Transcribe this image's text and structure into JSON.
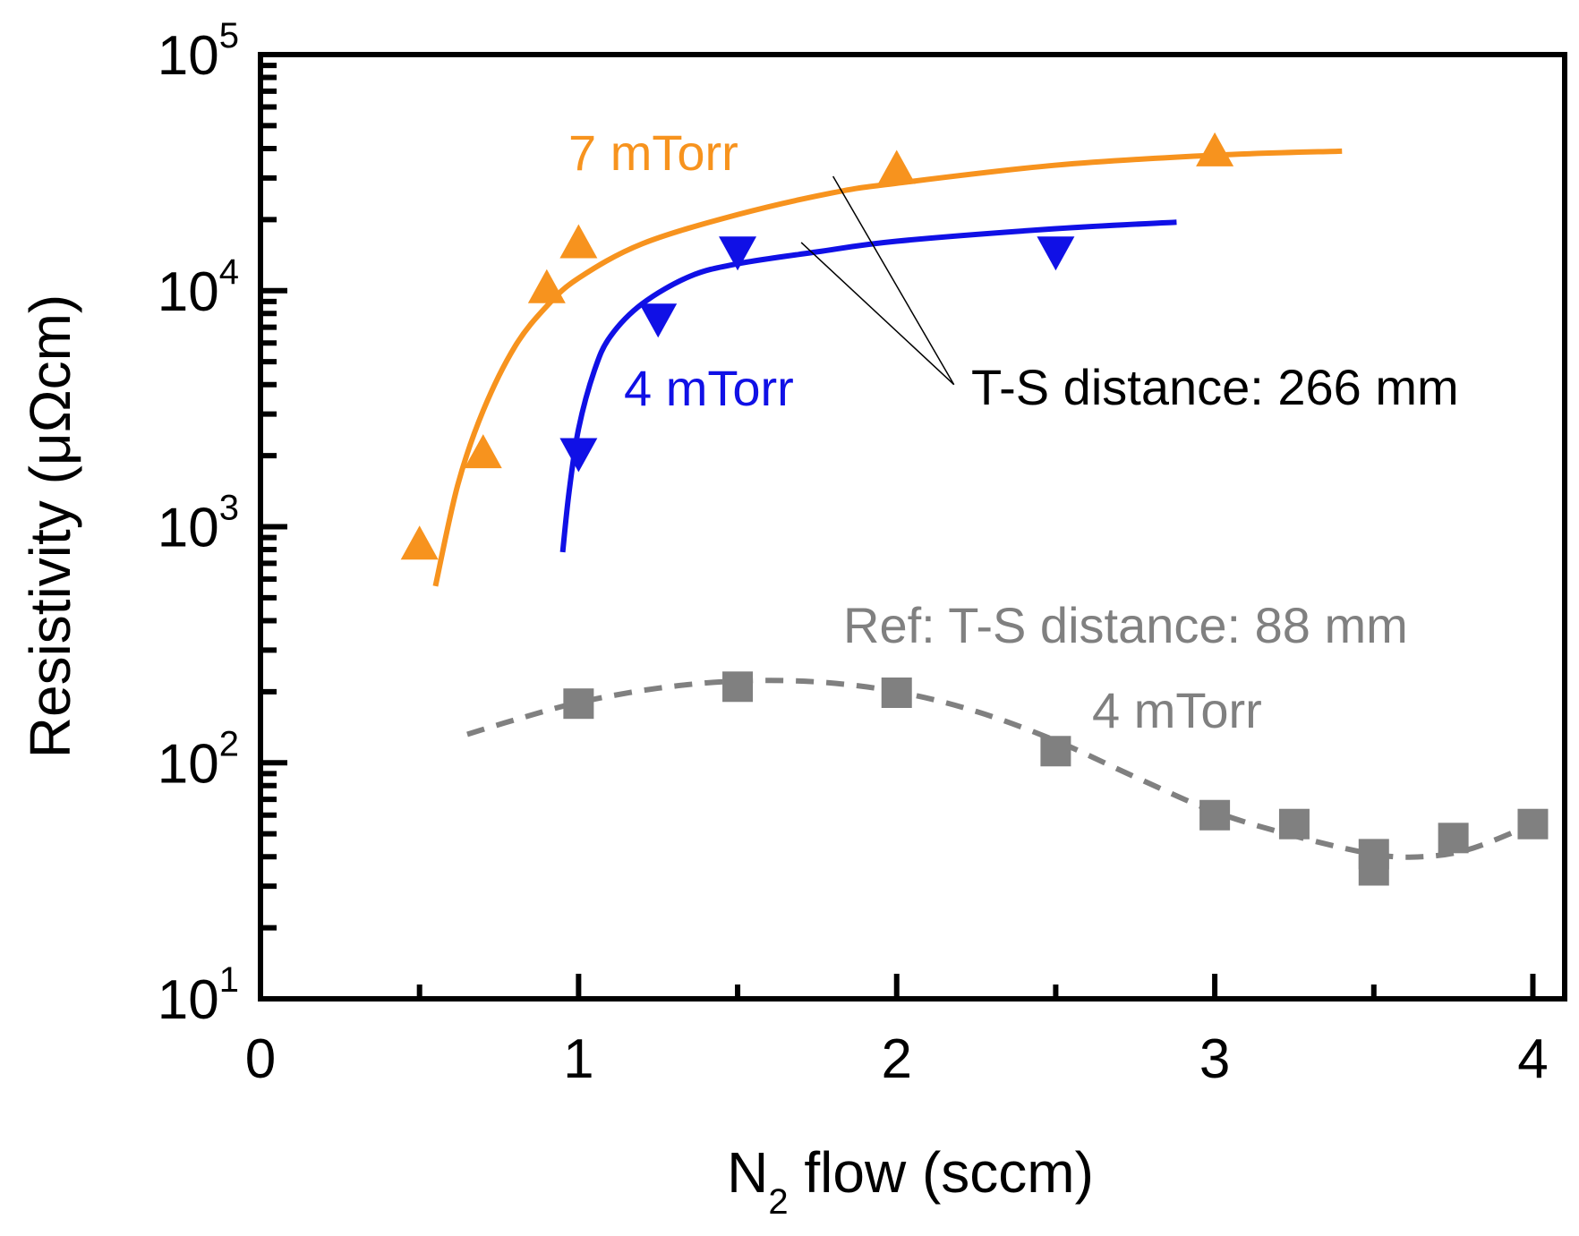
{
  "chart_data": {
    "type": "scatter",
    "title": "",
    "xlabel": {
      "main": "N",
      "sub": "2",
      "rest": " flow (sccm)"
    },
    "ylabel": "Resistivity (μΩcm)",
    "xlim": [
      0,
      4.1
    ],
    "ylim_log10": [
      1,
      5
    ],
    "y_scale": "log",
    "x_ticks": [
      {
        "value": 0,
        "label": "0"
      },
      {
        "value": 1,
        "label": "1"
      },
      {
        "value": 2,
        "label": "2"
      },
      {
        "value": 3,
        "label": "3"
      },
      {
        "value": 4,
        "label": "4"
      }
    ],
    "y_ticks": [
      {
        "exp": 1,
        "base": "10",
        "sup": "1"
      },
      {
        "exp": 2,
        "base": "10",
        "sup": "2"
      },
      {
        "exp": 3,
        "base": "10",
        "sup": "3"
      },
      {
        "exp": 4,
        "base": "10",
        "sup": "4"
      },
      {
        "exp": 5,
        "base": "10",
        "sup": "5"
      }
    ],
    "series": [
      {
        "name": "7 mTorr",
        "color": "#f7931e",
        "marker": "triangle-up",
        "points": [
          [
            0.5,
            820
          ],
          [
            0.7,
            2000
          ],
          [
            0.9,
            10000
          ],
          [
            1.0,
            15500
          ],
          [
            2.0,
            32000
          ],
          [
            3.0,
            38000
          ]
        ],
        "fit": [
          [
            0.55,
            560
          ],
          [
            0.62,
            1500
          ],
          [
            0.7,
            3100
          ],
          [
            0.8,
            5800
          ],
          [
            0.9,
            8600
          ],
          [
            1.0,
            11300
          ],
          [
            1.2,
            15800
          ],
          [
            1.5,
            21000
          ],
          [
            1.8,
            26000
          ],
          [
            2.0,
            28500
          ],
          [
            2.5,
            34000
          ],
          [
            3.0,
            37500
          ],
          [
            3.4,
            39000
          ]
        ],
        "fit_style": "solid",
        "label": "7 mTorr"
      },
      {
        "name": "4 mTorr",
        "color": "#1010e6",
        "marker": "triangle-down",
        "points": [
          [
            1.0,
            2100
          ],
          [
            1.25,
            7800
          ],
          [
            1.5,
            15000
          ],
          [
            2.5,
            15000
          ]
        ],
        "fit": [
          [
            0.95,
            780
          ],
          [
            0.97,
            1400
          ],
          [
            1.0,
            2600
          ],
          [
            1.05,
            4600
          ],
          [
            1.1,
            6400
          ],
          [
            1.2,
            8800
          ],
          [
            1.35,
            11500
          ],
          [
            1.5,
            13000
          ],
          [
            1.75,
            14600
          ],
          [
            2.0,
            16200
          ],
          [
            2.5,
            18300
          ],
          [
            2.88,
            19500
          ]
        ],
        "fit_style": "solid",
        "label": "4 mTorr"
      },
      {
        "name": "Ref 4 mTorr",
        "color": "#808080",
        "marker": "square",
        "points": [
          [
            1.0,
            178
          ],
          [
            1.5,
            210
          ],
          [
            2.0,
            198
          ],
          [
            2.5,
            112
          ],
          [
            3.0,
            60
          ],
          [
            3.25,
            55
          ],
          [
            3.5,
            41
          ],
          [
            3.5,
            35
          ],
          [
            3.75,
            48
          ],
          [
            4.0,
            55
          ]
        ],
        "fit": [
          [
            0.65,
            132
          ],
          [
            0.8,
            152
          ],
          [
            1.0,
            180
          ],
          [
            1.25,
            207
          ],
          [
            1.5,
            222
          ],
          [
            1.75,
            220
          ],
          [
            2.0,
            200
          ],
          [
            2.25,
            165
          ],
          [
            2.5,
            124
          ],
          [
            2.75,
            87
          ],
          [
            3.0,
            62
          ],
          [
            3.25,
            49
          ],
          [
            3.5,
            41
          ],
          [
            3.65,
            40
          ],
          [
            3.8,
            43
          ],
          [
            4.0,
            55
          ]
        ],
        "fit_style": "dashed",
        "label": "4 mTorr"
      }
    ],
    "annotations": {
      "ts_distance": "T-S distance: 266 mm",
      "ref_distance": "Ref: T-S distance: 88 mm",
      "pointer_targets": [
        [
          1.8,
          30500
        ],
        [
          1.7,
          16000
        ]
      ],
      "pointer_origin": [
        2.18,
        4000
      ]
    }
  }
}
